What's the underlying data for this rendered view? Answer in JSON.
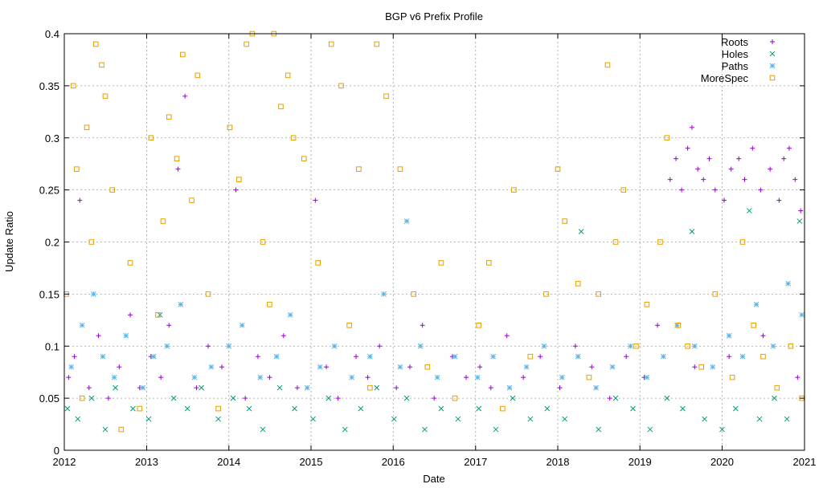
{
  "chart_data": {
    "type": "scatter",
    "title": "BGP v6 Prefix Profile",
    "xlabel": "Date",
    "ylabel": "Update Ratio",
    "xlim": [
      "2012-01-01",
      "2021-01-01"
    ],
    "ylim": [
      0,
      0.4
    ],
    "xticks": [
      "2012",
      "2013",
      "2014",
      "2015",
      "2016",
      "2017",
      "2018",
      "2019",
      "2020",
      "2021"
    ],
    "yticks": [
      "0",
      "0.05",
      "0.1",
      "0.15",
      "0.2",
      "0.25",
      "0.3",
      "0.35",
      "0.4"
    ],
    "grid": true,
    "legend_position": "top-right",
    "series": [
      {
        "name": "Roots",
        "color": "#9400d3",
        "marker": "plus",
        "points": [
          [
            "2012-01-20",
            0.07
          ],
          [
            "2012-02-15",
            0.09
          ],
          [
            "2012-03-10",
            0.24
          ],
          [
            "2012-04-20",
            0.06
          ],
          [
            "2012-06-01",
            0.11
          ],
          [
            "2012-07-15",
            0.05
          ],
          [
            "2012-09-01",
            0.08
          ],
          [
            "2012-10-20",
            0.13
          ],
          [
            "2012-12-01",
            0.06
          ],
          [
            "2013-01-20",
            0.09
          ],
          [
            "2013-03-05",
            0.07
          ],
          [
            "2013-04-10",
            0.12
          ],
          [
            "2013-05-20",
            0.27
          ],
          [
            "2013-06-20",
            0.34
          ],
          [
            "2013-08-10",
            0.06
          ],
          [
            "2013-10-01",
            0.1
          ],
          [
            "2013-12-01",
            0.08
          ],
          [
            "2014-02-01",
            0.25
          ],
          [
            "2014-03-15",
            0.05
          ],
          [
            "2014-05-10",
            0.09
          ],
          [
            "2014-07-01",
            0.07
          ],
          [
            "2014-09-01",
            0.11
          ],
          [
            "2014-11-01",
            0.06
          ],
          [
            "2015-01-20",
            0.24
          ],
          [
            "2015-03-10",
            0.08
          ],
          [
            "2015-05-01",
            0.05
          ],
          [
            "2015-07-20",
            0.09
          ],
          [
            "2015-09-10",
            0.07
          ],
          [
            "2015-11-01",
            0.1
          ],
          [
            "2016-01-15",
            0.06
          ],
          [
            "2016-03-15",
            0.08
          ],
          [
            "2016-05-10",
            0.12
          ],
          [
            "2016-07-01",
            0.05
          ],
          [
            "2016-09-20",
            0.09
          ],
          [
            "2016-11-20",
            0.07
          ],
          [
            "2017-01-20",
            0.08
          ],
          [
            "2017-03-10",
            0.06
          ],
          [
            "2017-05-20",
            0.11
          ],
          [
            "2017-08-01",
            0.07
          ],
          [
            "2017-10-15",
            0.09
          ],
          [
            "2018-01-10",
            0.06
          ],
          [
            "2018-03-20",
            0.1
          ],
          [
            "2018-06-01",
            0.08
          ],
          [
            "2018-08-20",
            0.05
          ],
          [
            "2018-11-01",
            0.09
          ],
          [
            "2019-01-20",
            0.07
          ],
          [
            "2019-03-20",
            0.12
          ],
          [
            "2019-05-15",
            0.26
          ],
          [
            "2019-06-10",
            0.28
          ],
          [
            "2019-07-05",
            0.25
          ],
          [
            "2019-08-01",
            0.29
          ],
          [
            "2019-08-20",
            0.31
          ],
          [
            "2019-09-15",
            0.27
          ],
          [
            "2019-10-10",
            0.26
          ],
          [
            "2019-11-05",
            0.28
          ],
          [
            "2019-12-01",
            0.25
          ],
          [
            "2020-01-10",
            0.24
          ],
          [
            "2020-02-10",
            0.27
          ],
          [
            "2020-03-15",
            0.28
          ],
          [
            "2020-04-10",
            0.26
          ],
          [
            "2020-05-15",
            0.29
          ],
          [
            "2020-06-20",
            0.25
          ],
          [
            "2020-08-01",
            0.27
          ],
          [
            "2020-09-10",
            0.24
          ],
          [
            "2020-10-01",
            0.28
          ],
          [
            "2020-10-25",
            0.29
          ],
          [
            "2020-11-20",
            0.26
          ],
          [
            "2020-12-15",
            0.23
          ],
          [
            "2019-09-01",
            0.08
          ],
          [
            "2020-02-01",
            0.09
          ],
          [
            "2020-07-01",
            0.11
          ],
          [
            "2020-12-01",
            0.07
          ]
        ]
      },
      {
        "name": "Holes",
        "color": "#009e73",
        "marker": "cross",
        "points": [
          [
            "2012-01-15",
            0.04
          ],
          [
            "2012-03-01",
            0.03
          ],
          [
            "2012-05-01",
            0.05
          ],
          [
            "2012-07-01",
            0.02
          ],
          [
            "2012-08-15",
            0.06
          ],
          [
            "2012-11-01",
            0.04
          ],
          [
            "2013-01-10",
            0.03
          ],
          [
            "2013-03-01",
            0.13
          ],
          [
            "2013-05-01",
            0.05
          ],
          [
            "2013-07-01",
            0.04
          ],
          [
            "2013-09-01",
            0.06
          ],
          [
            "2013-11-15",
            0.03
          ],
          [
            "2014-01-20",
            0.05
          ],
          [
            "2014-04-01",
            0.04
          ],
          [
            "2014-06-01",
            0.02
          ],
          [
            "2014-08-15",
            0.06
          ],
          [
            "2014-10-20",
            0.04
          ],
          [
            "2015-01-10",
            0.03
          ],
          [
            "2015-03-20",
            0.05
          ],
          [
            "2015-06-01",
            0.02
          ],
          [
            "2015-08-10",
            0.04
          ],
          [
            "2015-10-20",
            0.06
          ],
          [
            "2016-01-05",
            0.03
          ],
          [
            "2016-03-01",
            0.05
          ],
          [
            "2016-05-20",
            0.02
          ],
          [
            "2016-08-01",
            0.04
          ],
          [
            "2016-10-15",
            0.03
          ],
          [
            "2017-01-15",
            0.04
          ],
          [
            "2017-04-01",
            0.02
          ],
          [
            "2017-06-15",
            0.05
          ],
          [
            "2017-09-01",
            0.03
          ],
          [
            "2017-11-15",
            0.04
          ],
          [
            "2018-02-01",
            0.03
          ],
          [
            "2018-04-15",
            0.21
          ],
          [
            "2018-07-01",
            0.02
          ],
          [
            "2018-09-15",
            0.05
          ],
          [
            "2018-12-01",
            0.04
          ],
          [
            "2019-02-15",
            0.02
          ],
          [
            "2019-05-01",
            0.05
          ],
          [
            "2019-07-10",
            0.04
          ],
          [
            "2019-08-20",
            0.21
          ],
          [
            "2019-10-15",
            0.03
          ],
          [
            "2020-01-01",
            0.02
          ],
          [
            "2020-03-01",
            0.04
          ],
          [
            "2020-05-01",
            0.23
          ],
          [
            "2020-06-15",
            0.03
          ],
          [
            "2020-08-20",
            0.05
          ],
          [
            "2020-10-15",
            0.03
          ],
          [
            "2020-12-10",
            0.22
          ]
        ]
      },
      {
        "name": "Paths",
        "color": "#56b4e9",
        "marker": "star",
        "points": [
          [
            "2012-02-01",
            0.08
          ],
          [
            "2012-03-20",
            0.12
          ],
          [
            "2012-05-10",
            0.15
          ],
          [
            "2012-06-20",
            0.09
          ],
          [
            "2012-08-10",
            0.07
          ],
          [
            "2012-10-01",
            0.11
          ],
          [
            "2012-12-15",
            0.06
          ],
          [
            "2013-02-01",
            0.09
          ],
          [
            "2013-04-01",
            0.1
          ],
          [
            "2013-06-01",
            0.14
          ],
          [
            "2013-08-01",
            0.07
          ],
          [
            "2013-10-15",
            0.08
          ],
          [
            "2014-01-01",
            0.1
          ],
          [
            "2014-03-01",
            0.12
          ],
          [
            "2014-05-20",
            0.07
          ],
          [
            "2014-08-01",
            0.09
          ],
          [
            "2014-10-01",
            0.13
          ],
          [
            "2014-12-15",
            0.06
          ],
          [
            "2015-02-10",
            0.08
          ],
          [
            "2015-04-15",
            0.1
          ],
          [
            "2015-07-01",
            0.07
          ],
          [
            "2015-09-20",
            0.09
          ],
          [
            "2015-11-20",
            0.15
          ],
          [
            "2016-02-01",
            0.08
          ],
          [
            "2016-03-01",
            0.22
          ],
          [
            "2016-05-01",
            0.1
          ],
          [
            "2016-07-15",
            0.07
          ],
          [
            "2016-10-01",
            0.09
          ],
          [
            "2017-01-10",
            0.07
          ],
          [
            "2017-03-20",
            0.09
          ],
          [
            "2017-06-01",
            0.06
          ],
          [
            "2017-08-15",
            0.08
          ],
          [
            "2017-11-01",
            0.1
          ],
          [
            "2018-01-20",
            0.07
          ],
          [
            "2018-04-01",
            0.09
          ],
          [
            "2018-06-20",
            0.06
          ],
          [
            "2018-09-01",
            0.08
          ],
          [
            "2018-11-20",
            0.1
          ],
          [
            "2019-02-01",
            0.07
          ],
          [
            "2019-04-15",
            0.09
          ],
          [
            "2019-06-15",
            0.12
          ],
          [
            "2019-09-01",
            0.1
          ],
          [
            "2019-11-20",
            0.08
          ],
          [
            "2020-02-01",
            0.11
          ],
          [
            "2020-04-01",
            0.09
          ],
          [
            "2020-06-01",
            0.14
          ],
          [
            "2020-08-15",
            0.1
          ],
          [
            "2020-10-20",
            0.16
          ],
          [
            "2020-12-20",
            0.13
          ]
        ]
      },
      {
        "name": "MoreSpec",
        "color": "#e69f00",
        "marker": "square",
        "points": [
          [
            "2012-01-10",
            0.15
          ],
          [
            "2012-02-10",
            0.35
          ],
          [
            "2012-02-25",
            0.27
          ],
          [
            "2012-03-20",
            0.05
          ],
          [
            "2012-04-10",
            0.31
          ],
          [
            "2012-05-01",
            0.2
          ],
          [
            "2012-05-20",
            0.39
          ],
          [
            "2012-06-15",
            0.37
          ],
          [
            "2012-07-01",
            0.34
          ],
          [
            "2012-08-01",
            0.25
          ],
          [
            "2012-09-10",
            0.02
          ],
          [
            "2012-10-20",
            0.18
          ],
          [
            "2012-12-01",
            0.04
          ],
          [
            "2013-01-20",
            0.3
          ],
          [
            "2013-02-20",
            0.13
          ],
          [
            "2013-03-15",
            0.22
          ],
          [
            "2013-04-10",
            0.32
          ],
          [
            "2013-05-15",
            0.28
          ],
          [
            "2013-06-10",
            0.38
          ],
          [
            "2013-07-20",
            0.24
          ],
          [
            "2013-08-15",
            0.36
          ],
          [
            "2013-10-01",
            0.15
          ],
          [
            "2013-11-15",
            0.04
          ],
          [
            "2014-01-05",
            0.31
          ],
          [
            "2014-02-15",
            0.26
          ],
          [
            "2014-03-20",
            0.39
          ],
          [
            "2014-04-15",
            0.4
          ],
          [
            "2014-06-01",
            0.2
          ],
          [
            "2014-07-01",
            0.14
          ],
          [
            "2014-07-20",
            0.4
          ],
          [
            "2014-08-20",
            0.33
          ],
          [
            "2014-09-20",
            0.36
          ],
          [
            "2014-10-15",
            0.3
          ],
          [
            "2014-12-01",
            0.28
          ],
          [
            "2015-02-01",
            0.18
          ],
          [
            "2015-04-01",
            0.39
          ],
          [
            "2015-05-15",
            0.35
          ],
          [
            "2015-06-20",
            0.12
          ],
          [
            "2015-08-01",
            0.27
          ],
          [
            "2015-09-20",
            0.06
          ],
          [
            "2015-10-20",
            0.39
          ],
          [
            "2015-12-01",
            0.34
          ],
          [
            "2016-02-01",
            0.27
          ],
          [
            "2016-04-01",
            0.15
          ],
          [
            "2016-06-01",
            0.08
          ],
          [
            "2016-08-01",
            0.18
          ],
          [
            "2016-10-01",
            0.05
          ],
          [
            "2017-01-15",
            0.12
          ],
          [
            "2017-03-01",
            0.18
          ],
          [
            "2017-05-01",
            0.04
          ],
          [
            "2017-06-20",
            0.25
          ],
          [
            "2017-09-01",
            0.09
          ],
          [
            "2017-11-10",
            0.15
          ],
          [
            "2018-01-01",
            0.27
          ],
          [
            "2018-02-01",
            0.22
          ],
          [
            "2018-04-01",
            0.16
          ],
          [
            "2018-05-20",
            0.07
          ],
          [
            "2018-07-01",
            0.15
          ],
          [
            "2018-08-10",
            0.37
          ],
          [
            "2018-09-15",
            0.2
          ],
          [
            "2018-10-20",
            0.25
          ],
          [
            "2018-12-15",
            0.1
          ],
          [
            "2019-02-01",
            0.14
          ],
          [
            "2019-04-01",
            0.2
          ],
          [
            "2019-05-01",
            0.3
          ],
          [
            "2019-06-20",
            0.12
          ],
          [
            "2019-08-01",
            0.1
          ],
          [
            "2019-10-01",
            0.08
          ],
          [
            "2019-12-01",
            0.15
          ],
          [
            "2020-02-15",
            0.07
          ],
          [
            "2020-04-01",
            0.2
          ],
          [
            "2020-05-20",
            0.12
          ],
          [
            "2020-07-01",
            0.09
          ],
          [
            "2020-09-01",
            0.06
          ],
          [
            "2020-11-01",
            0.1
          ],
          [
            "2020-12-20",
            0.05
          ]
        ]
      }
    ]
  }
}
